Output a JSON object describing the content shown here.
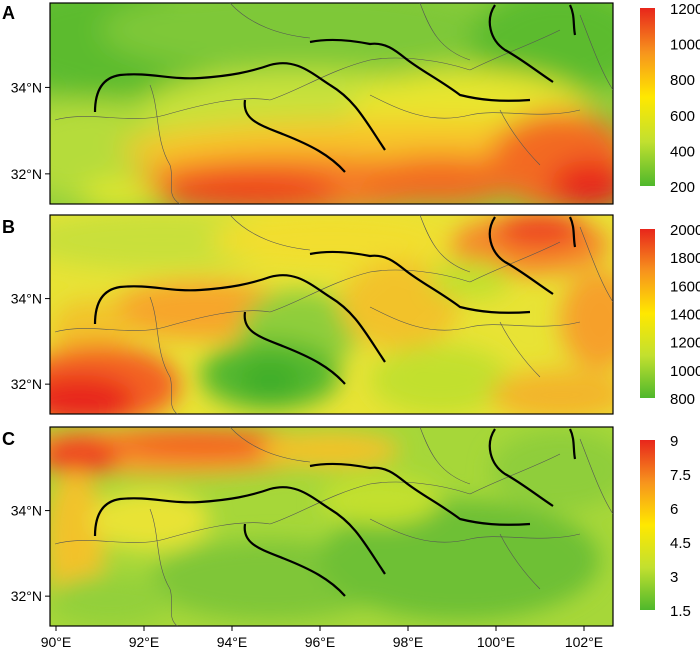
{
  "panels": [
    {
      "letter": "A",
      "colorbar_ticks": [
        "1200",
        "1000",
        "800",
        "600",
        "400",
        "200"
      ],
      "colors": [
        "#e8261b",
        "#f7941d",
        "#ffe800",
        "#c2e02f",
        "#4fb82c"
      ]
    },
    {
      "letter": "B",
      "colorbar_ticks": [
        "2000",
        "1800",
        "1600",
        "1400",
        "1200",
        "1000",
        "800"
      ],
      "colors": [
        "#e8261b",
        "#f7941d",
        "#ffe800",
        "#c2e02f",
        "#4fb82c"
      ]
    },
    {
      "letter": "C",
      "colorbar_ticks": [
        "9",
        "7.5",
        "6",
        "4.5",
        "3",
        "1.5"
      ],
      "colors": [
        "#e8261b",
        "#f7941d",
        "#ffe800",
        "#c2e02f",
        "#4fb82c"
      ]
    }
  ],
  "lat_labels": [
    "34°N",
    "32°N"
  ],
  "lon_labels": [
    "90°E",
    "92°E",
    "94°E",
    "96°E",
    "98°E",
    "100°E",
    "102°E"
  ]
}
